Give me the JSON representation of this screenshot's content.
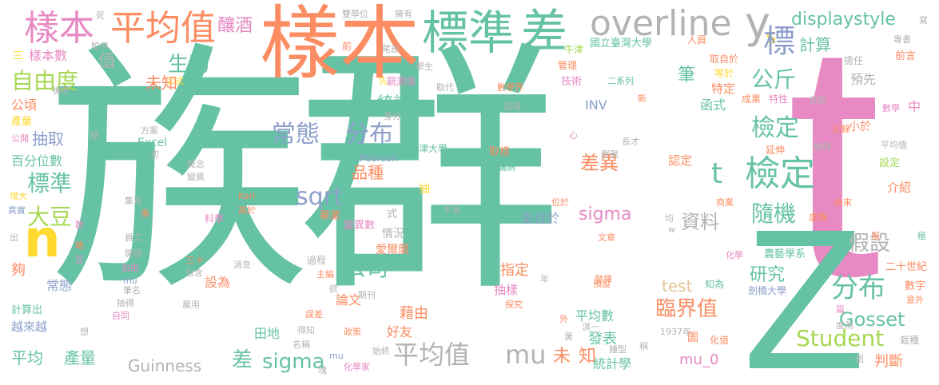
{
  "cloud": {
    "words": {
      "zuqun": "族群",
      "t_big": "t",
      "z_big": "Z",
      "yangben_orange": "樣本",
      "biaozhun_top": "標準",
      "cha_top": "差",
      "overline": "overline",
      "y": "y",
      "n": "n",
      "yangben_tl": "樣本",
      "pingjunzhi_tl": "平均值",
      "niangjiu": "釀酒",
      "displaystyle": "displaystyle",
      "s": "s",
      "biao": "標",
      "changtai": "常態",
      "fenbu_mid": "分布",
      "jianding_1": "檢定",
      "jianding_2": "檢定",
      "t_small": "t",
      "gongjin": "公斤",
      "shengwu": "生物",
      "zhi": "值",
      "ziyoudu": "自由度",
      "weizhi_1": "未知",
      "sqrt": "sqrt",
      "pinzhong": "品種",
      "chayi": "差異",
      "suiji": "隨機",
      "sigma_mid": "sigma",
      "ziliao": "資料",
      "gongsi": "公司",
      "fenbu_right": "分布",
      "yanjiu": "研究",
      "jiashe": "假設",
      "linjiezhi": "臨界值",
      "pingjunzhi_bottom": "平均值",
      "mu_bottom": "mu",
      "weizhi_2": "未",
      "zhi_2": "知",
      "sigma_bottom": "sigma",
      "cha_bottom": "差",
      "pingjun": "平均",
      "chanliang": "產量",
      "guinness": "Guinness",
      "student": "Student",
      "gosset": "Gosset",
      "test": "test",
      "mu_0": "mu_0",
      "panduan": "判斷",
      "tongjixue": "統計學",
      "fabiao": "發表",
      "tu": "圖",
      "dadou": "大豆",
      "biaozhun_left": "標準",
      "chouqu": "抽取",
      "baifenweishu": "百分位數",
      "excel": "Excel",
      "tongji": "統計",
      "jisuan": "計算",
      "bi": "筆",
      "hanshi": "函式",
      "jieshao": "介紹",
      "xiaoyu": "小於",
      "tedingg": "特定",
      "yuxian": "預先",
      "renzhi": "認定",
      "qingkuang": "情況",
      "zhiding": "指定",
      "choyang": "抽樣",
      "pingjunshu": "平均數",
      "laizi": "來自於",
      "youyou": "好友",
      "jieyou": "藉由",
      "lunwen": "論文",
      "shezhi": "設為",
      "tiandi": "田地",
      "ershishiji": "二十世紀",
      "nongyi": "農藝學系",
      "inv": "INV",
      "niujindaxue": "牛津大學",
      "chouyang2": "取樣",
      "xinzangbing": "心臟病",
      "gongshi": "公式",
      "jishu": "技術",
      "erxilie": "二系列",
      "guanli": "管理",
      "guoli": "國立臺灣大學",
      "pearson": "Pearson",
      "karl": "Karl",
      "gaoyu": "高於",
      "kexue": "科學",
      "fanli": "範例",
      "shi": "式",
      "chou": "抽",
      "bianyishu": "變異數",
      "aierlan": "愛爾蘭",
      "biye": "畢業",
      "changtai_small": "常態",
      "gou": "夠",
      "yuexiaoyue": "越來越",
      "jisuanchu": "計算出",
      "yuangong": "員工",
      "kaifa": "開發",
      "zhongji": "中",
      "yanshen": "延伸",
      "qushangyu": "取自於",
      "dengyu": "等於",
      "chengguo": "成果",
      "texing": "特性",
      "gongxian": "貢獻",
      "jilu": "記錄",
      "shuxue": "數學",
      "huaxue": "化學",
      "jianqiao": "劍橋大學",
      "shuzi": "數字",
      "yiwai": "意外",
      "zaipei": "栽種",
      "huazhi": "化值",
      "shangye": "商業",
      "xuwu": "虛無",
      "youlai": "由來",
      "zhizhi": "知為",
      "jixielu": "機錄",
      "pingjunzhi_r": "平均值",
      "sheding": "設定",
      "zhuanshu": "專書",
      "qianyan": "前言",
      "danren": "擔任",
      "renyuan": "人員",
      "niujin": "牛津",
      "shuanxuewei": "雙學位",
      "yongyou": "擁有",
      "qian": "前",
      "weibu": "尾部",
      "si": "死",
      "bolin": "柏林",
      "san": "三",
      "yangbenshu": "樣本數",
      "gongqing": "公頃",
      "jimi": "機密",
      "chanliang_small": "產量",
      "gongkai": "公開",
      "hou": "厚",
      "fangan": "方案",
      "chu": "初",
      "gainian": "概念",
      "bianyi": "變異",
      "guanceliang": "觀測值",
      "laiyuan": "來源",
      "qudai": "取代",
      "shenfen": "身分",
      "xian": "先",
      "shuxuejie": "數學界",
      "mianji": "面積",
      "xin": "新",
      "qunju": "群聚",
      "zhangcai": "長才",
      "zengda": "增大",
      "zhenshi": "真實",
      "qun": "群",
      "chu_small": "出",
      "jizi": "集資",
      "shi_small": "事",
      "lue": "略",
      "dou": "豆",
      "zi": "自由",
      "zhu": "自",
      "mu_small": "mu",
      "choude": "抽得",
      "biming": "筆名",
      "yongyong": "雇用",
      "ziyong": "自同",
      "xiang": "想",
      "sanshi": "三十",
      "baohan": "包含",
      "xiaoxi": "消息",
      "guocheng": "過程",
      "zhubian": "主編",
      "qikan": "期刊",
      "yu": "欲",
      "wucha": "誤差",
      "dezhi": "得知",
      "zhengce": "政策",
      "shizhong": "始終",
      "mingcheng": "名稱",
      "huaxuejia": "化學家",
      "mu_tiny": "mu",
      "kuai": "塊",
      "tanjiu": "探究",
      "fahui": "發揮",
      "yudshe": "預設",
      "wenzhang": "文章",
      "nian": "年",
      "wai": "外",
      "huang": "黃",
      "qiyi": "淇一",
      "nianfen": "1937年",
      "zhongxing": "鐘型",
      "cheng": "稱",
      "duwei": "度為",
      "pian": "篇",
      "zu": "組",
      "fu": "服",
      "ji": "極",
      "bu_zhun": "不准",
      "xie": "寫",
      "weiyu": "位於",
      "jun": "均",
      "w": "w",
      "xinzhuang": "心",
      "xuesheng": "學生"
    },
    "colors": {
      "teal": "#66c2a5",
      "pink": "#e78ac3",
      "orange": "#fc8d62",
      "blue": "#8da0cb",
      "green": "#a6d854",
      "yellow": "#ffd92f",
      "tan": "#e5c494",
      "gray": "#b3b3b3"
    }
  }
}
